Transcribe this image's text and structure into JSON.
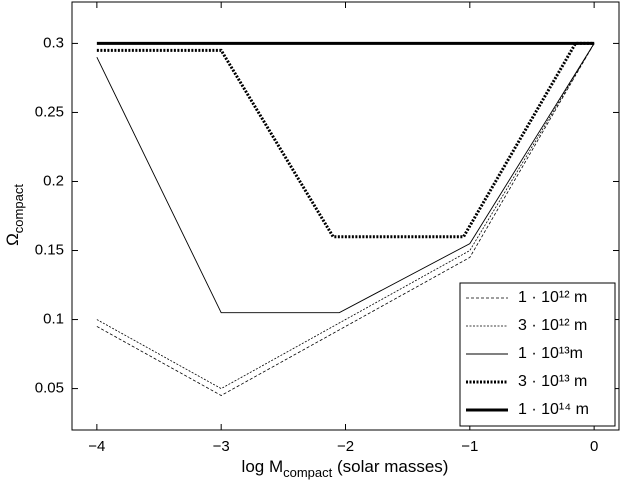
{
  "chart_data": {
    "type": "line",
    "xlabel": "log M",
    "xlabel_sub": "compact",
    "xlabel_tail": " (solar masses)",
    "ylabel": "Ω",
    "ylabel_sub": "compact",
    "xlim": [
      -4.2,
      0.2
    ],
    "ylim": [
      0.02,
      0.33
    ],
    "xticks": [
      {
        "value": -4,
        "label": "−4"
      },
      {
        "value": -3,
        "label": "−3"
      },
      {
        "value": -2,
        "label": "−2"
      },
      {
        "value": -1,
        "label": "−1"
      },
      0
    ],
    "yticks": [
      0.05,
      0.1,
      0.15,
      0.2,
      0.25,
      0.3
    ],
    "grid": false,
    "legend": "lower right",
    "series": [
      {
        "name": "1 · 10¹² m",
        "color": "#000000",
        "width": 0.8,
        "dash": "3,2",
        "x": [
          -4,
          -3,
          -1,
          0
        ],
        "y": [
          0.095,
          0.045,
          0.145,
          0.3
        ]
      },
      {
        "name": "3 · 10¹² m",
        "color": "#000000",
        "width": 0.8,
        "dash": "2,1.5",
        "x": [
          -4,
          -3,
          -1,
          0
        ],
        "y": [
          0.1,
          0.05,
          0.15,
          0.3
        ]
      },
      {
        "name": "1 · 10¹³m",
        "color": "#000000",
        "width": 0.9,
        "dash": "none",
        "x": [
          -4,
          -3,
          -2.05,
          -1,
          0
        ],
        "y": [
          0.29,
          0.105,
          0.105,
          0.155,
          0.3
        ]
      },
      {
        "name": "3 · 10¹³ m",
        "color": "#000000",
        "width": 3,
        "dash": "2,1.5",
        "x": [
          -4,
          -3,
          -2.1,
          -1.05,
          -0.15,
          0
        ],
        "y": [
          0.295,
          0.295,
          0.16,
          0.16,
          0.3,
          0.3
        ]
      },
      {
        "name": "1 · 10¹⁴ m",
        "color": "#000000",
        "width": 3,
        "dash": "none",
        "x": [
          -4,
          0
        ],
        "y": [
          0.3,
          0.3
        ]
      }
    ]
  }
}
